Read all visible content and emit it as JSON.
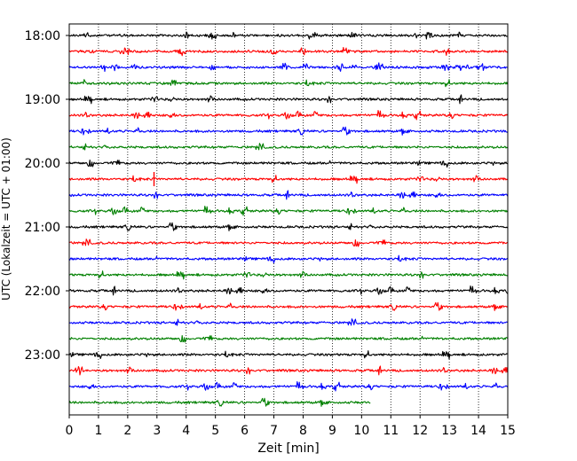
{
  "chart_data": {
    "type": "line",
    "subtype": "helicorder",
    "title": "",
    "xlabel": "Zeit  [min]",
    "ylabel": "UTC (Lokalzeit = UTC + 01:00)",
    "xlim": [
      0,
      15
    ],
    "x_ticks": [
      "0",
      "1",
      "2",
      "3",
      "4",
      "5",
      "6",
      "7",
      "8",
      "9",
      "10",
      "11",
      "12",
      "13",
      "14",
      "15"
    ],
    "y_tick_labels": [
      "18:00",
      "19:00",
      "20:00",
      "21:00",
      "22:00",
      "23:00"
    ],
    "trace_interval_min": 15,
    "grid": "vertical-dotted",
    "colors": [
      "#000000",
      "#ff0000",
      "#0000ff",
      "#008000"
    ],
    "series": [
      {
        "start": "18:00",
        "end_min": 15,
        "color": "#000000"
      },
      {
        "start": "18:15",
        "end_min": 15,
        "color": "#ff0000"
      },
      {
        "start": "18:30",
        "end_min": 15,
        "color": "#0000ff"
      },
      {
        "start": "18:45",
        "end_min": 15,
        "color": "#008000"
      },
      {
        "start": "19:00",
        "end_min": 15,
        "color": "#000000"
      },
      {
        "start": "19:15",
        "end_min": 15,
        "color": "#ff0000"
      },
      {
        "start": "19:30",
        "end_min": 15,
        "color": "#0000ff"
      },
      {
        "start": "19:45",
        "end_min": 15,
        "color": "#008000"
      },
      {
        "start": "20:00",
        "end_min": 15,
        "color": "#000000"
      },
      {
        "start": "20:15",
        "end_min": 15,
        "color": "#ff0000"
      },
      {
        "start": "20:30",
        "end_min": 15,
        "color": "#0000ff"
      },
      {
        "start": "20:45",
        "end_min": 15,
        "color": "#008000"
      },
      {
        "start": "21:00",
        "end_min": 15,
        "color": "#000000"
      },
      {
        "start": "21:15",
        "end_min": 15,
        "color": "#ff0000"
      },
      {
        "start": "21:30",
        "end_min": 15,
        "color": "#0000ff"
      },
      {
        "start": "21:45",
        "end_min": 15,
        "color": "#008000"
      },
      {
        "start": "22:00",
        "end_min": 15,
        "color": "#000000"
      },
      {
        "start": "22:15",
        "end_min": 15,
        "color": "#ff0000"
      },
      {
        "start": "22:30",
        "end_min": 15,
        "color": "#0000ff"
      },
      {
        "start": "22:45",
        "end_min": 15,
        "color": "#008000"
      },
      {
        "start": "23:00",
        "end_min": 15,
        "color": "#000000"
      },
      {
        "start": "23:15",
        "end_min": 15,
        "color": "#ff0000"
      },
      {
        "start": "23:30",
        "end_min": 15,
        "color": "#0000ff"
      },
      {
        "start": "23:45",
        "end_min": 10.3,
        "color": "#008000"
      }
    ]
  }
}
